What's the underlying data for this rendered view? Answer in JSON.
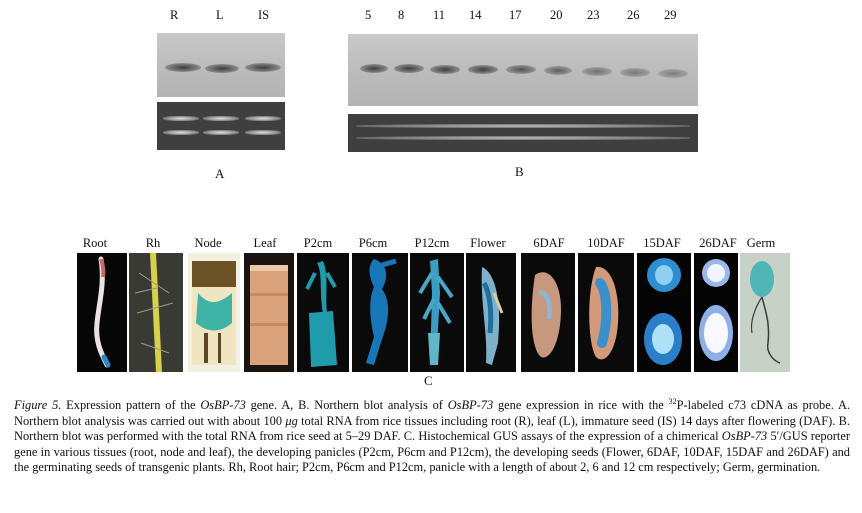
{
  "panel_a": {
    "lanes": [
      "R",
      "L",
      "IS"
    ],
    "label": "A"
  },
  "panel_b": {
    "lanes": [
      "5",
      "8",
      "11",
      "14",
      "17",
      "20",
      "23",
      "26",
      "29"
    ],
    "label": "B"
  },
  "panel_c": {
    "tissues": [
      "Root",
      "Rh",
      "Node",
      "Leaf",
      "P2cm",
      "P6cm",
      "P12cm",
      "Flower",
      "6DAF",
      "10DAF",
      "15DAF",
      "26DAF",
      "Germ"
    ],
    "label": "C"
  },
  "caption": {
    "figure_label": "Figure 5.",
    "t1": " Expression pattern of the ",
    "gene": "OsBP-73",
    "t2": " gene. A, B. Northern blot analysis of ",
    "t3": " gene expression in rice with the ",
    "sup": "32",
    "t4": "P-labeled c73 cDNA as probe. A. Northern blot analysis was carried out with about 100 ",
    "mu": "μg",
    "t5": " total RNA from rice tissues including root (R), leaf (L), immature seed (IS) 14 days after flowering (DAF). B. Northern blot was performed with the total RNA from rice seed at 5–29 DAF. C. Histochemical GUS assays of the expression of a chimerical ",
    "t6": " 5′/GUS reporter gene in various tissues (root, node and leaf), the developing panicles (P2cm, P6cm and P12cm), the developing seeds (Flower, 6DAF, 10DAF, 15DAF and 26DAF) and the germinating seeds of transgenic plants. Rh, Root hair; P2cm, P6cm and P12cm, panicle with a length of about 2, 6 and 12 cm respectively; Germ, germination."
  }
}
